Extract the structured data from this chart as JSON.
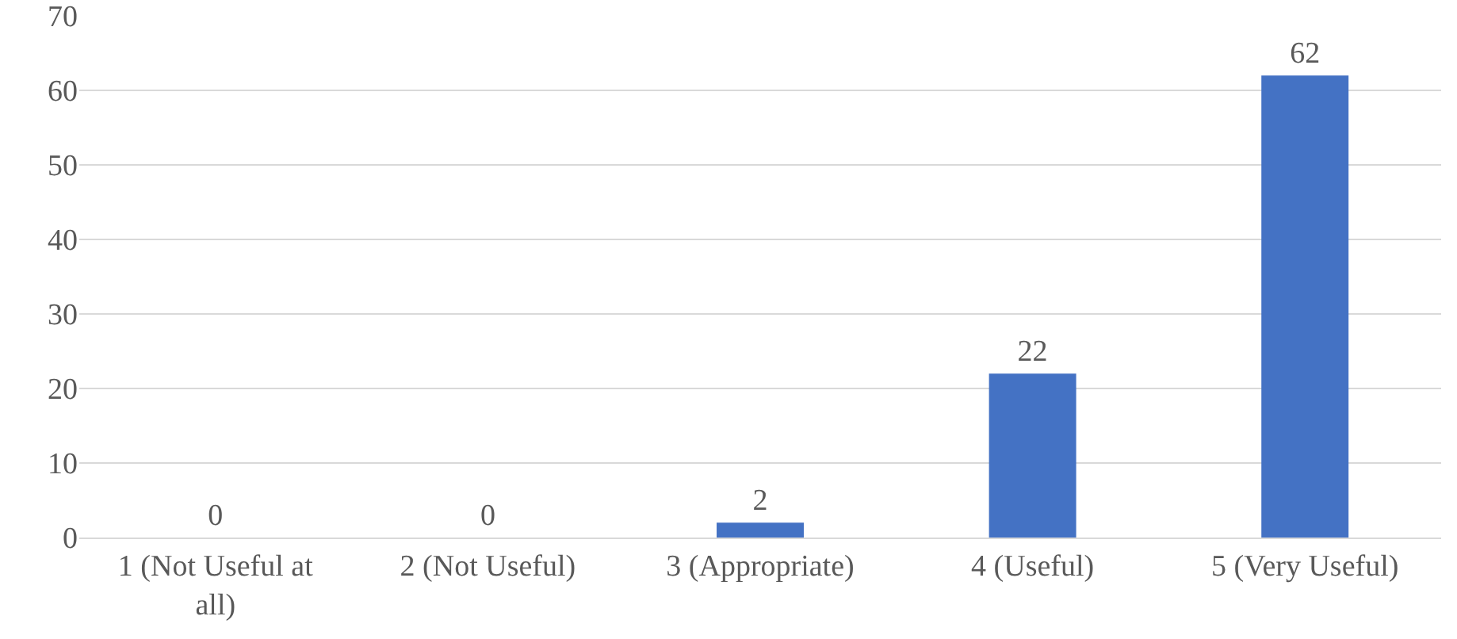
{
  "chart_data": {
    "type": "bar",
    "categories": [
      "1 (Not Useful at all)",
      "2 (Not Useful)",
      "3 (Appropriate)",
      "4 (Useful)",
      "5 (Very Useful)"
    ],
    "values": [
      0,
      0,
      2,
      22,
      62
    ],
    "color": "#4472c4",
    "ylim": [
      0,
      70
    ],
    "yticks": [
      0,
      10,
      20,
      30,
      40,
      50,
      60,
      70
    ],
    "grid": true,
    "data_labels": true,
    "legend": false
  }
}
